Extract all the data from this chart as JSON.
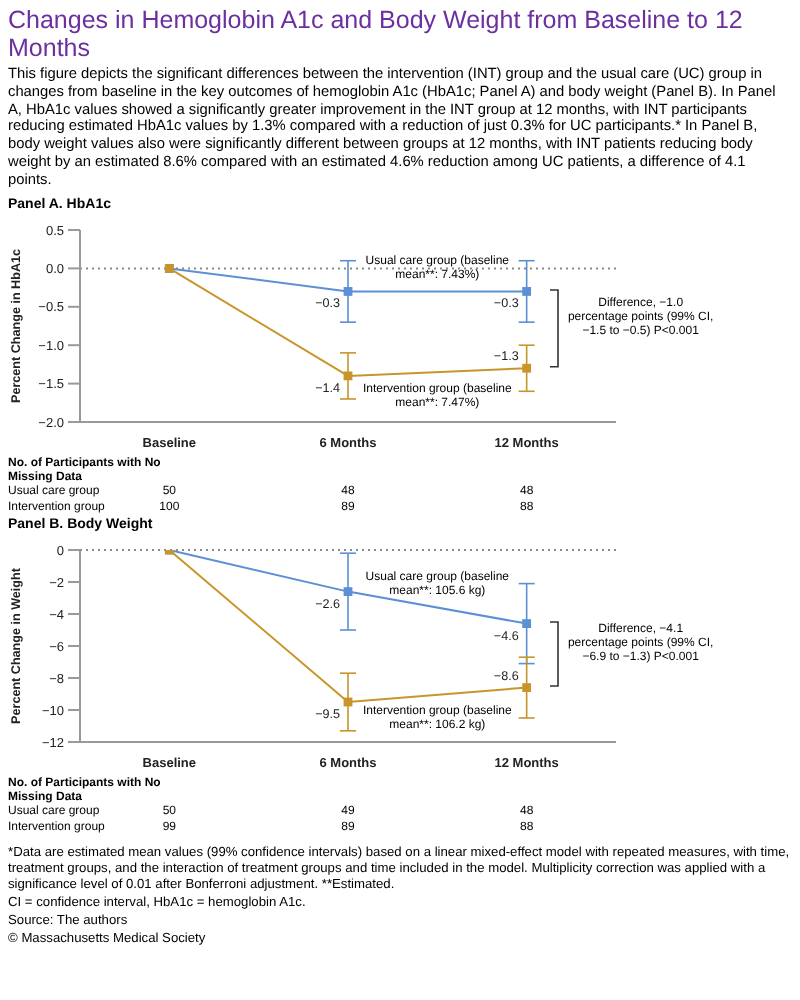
{
  "chart_data": [
    {
      "type": "line",
      "title": "Changes in Hemoglobin A1c and Body Weight from Baseline to 12 Months",
      "subtitle": "This figure depicts the significant differences between the intervention (INT) group and the usual care (UC) group in changes from baseline in the key outcomes of hemoglobin A1c (HbA1c; Panel A) and body weight (Panel B). In Panel A, HbA1c values showed a significantly greater improvement in the INT group at 12 months, with INT participants reducing estimated HbA1c values by 1.3% compared with a reduction of just 0.3% for UC participants.* In Panel B, body weight values also were significantly different between groups at 12 months, with INT patients reducing body weight by an estimated 8.6% compared with an estimated 4.6% reduction among UC patients, a difference of 4.1 points.",
      "ylabel": "Percent Change in HbA1c",
      "categories": [
        "Baseline",
        "6 Months",
        "12 Months"
      ],
      "series": [
        {
          "color": "#5b8fd6",
          "values": [
            0,
            -0.3,
            -0.3
          ],
          "errors": [
            null,
            [
              -0.7,
              0.1
            ],
            [
              -0.7,
              0.1
            ]
          ],
          "value_labels": [
            null,
            "−0.3",
            "−0.3"
          ]
        },
        {
          "color": "#c8952a",
          "values": [
            0,
            -1.4,
            -1.3
          ],
          "errors": [
            null,
            [
              -1.7,
              -1.1
            ],
            [
              -1.6,
              -1.0
            ]
          ],
          "value_labels": [
            null,
            "−1.4",
            "−1.3"
          ]
        }
      ],
      "ylim": [
        -2,
        0.5
      ],
      "yticks": [
        {
          "value": -2,
          "label": "−2.0"
        },
        {
          "value": -1.5,
          "label": "−1.5"
        },
        {
          "value": -1,
          "label": "−1.0"
        },
        {
          "value": -0.5,
          "label": "−0.5"
        },
        {
          "value": 0,
          "label": "0.0"
        },
        0.5
      ],
      "ref_lines": [
        {
          "axis": "y",
          "value": 0,
          "color": "#888888",
          "line_style": "dotted"
        }
      ],
      "marker": "square",
      "line_style": "solid",
      "annotations": [
        "Panel A. HbA1c",
        "Usual care group (baseline mean**: 7.43%)",
        "Intervention group (baseline mean**: 7.47%)",
        "Difference, −1.0 percentage points (99% CI, −1.5 to −0.5) P<0.001",
        "No. of Participants with No Missing Data",
        "Usual care group",
        "50",
        "48",
        "48",
        "Intervention group",
        "100",
        "89",
        "88"
      ]
    },
    {
      "type": "line",
      "ylabel": "Percent Change in Weight",
      "categories": [
        "Baseline",
        "6 Months",
        "12 Months"
      ],
      "series": [
        {
          "color": "#5b8fd6",
          "values": [
            0,
            -2.6,
            -4.6
          ],
          "errors": [
            null,
            [
              -5.0,
              -0.2
            ],
            [
              -7.1,
              -2.1
            ]
          ],
          "value_labels": [
            null,
            "−2.6",
            "−4.6"
          ]
        },
        {
          "color": "#c8952a",
          "values": [
            0,
            -9.5,
            -8.6
          ],
          "errors": [
            null,
            [
              -11.3,
              -7.7
            ],
            [
              -10.5,
              -6.7
            ]
          ],
          "value_labels": [
            null,
            "−9.5",
            "−8.6"
          ]
        }
      ],
      "ylim": [
        -12,
        0
      ],
      "yticks": [
        {
          "value": -12,
          "label": "−12"
        },
        {
          "value": -10,
          "label": "−10"
        },
        {
          "value": -8,
          "label": "−8"
        },
        {
          "value": -6,
          "label": "−6"
        },
        {
          "value": -4,
          "label": "−4"
        },
        {
          "value": -2,
          "label": "−2"
        },
        0
      ],
      "ref_lines": [
        {
          "axis": "y",
          "value": 0,
          "color": "#888888",
          "line_style": "dotted"
        }
      ],
      "marker": "square",
      "line_style": "solid",
      "annotations": [
        "Panel B. Body Weight",
        "Usual care group (baseline mean**: 105.6 kg)",
        "Intervention group (baseline mean**: 106.2 kg)",
        "Difference, −4.1 percentage points (99% CI, −6.9 to −1.3) P<0.001",
        "No. of Participants with No Missing Data",
        "Usual care group",
        "50",
        "49",
        "48",
        "Intervention group",
        "99",
        "89",
        "88",
        "*Data are estimated mean values (99% confidence intervals) based on a linear mixed-effect model with repeated measures, with time, treatment groups, and the interaction of treatment groups and time included in the model. Multiplicity correction was applied with a significance level of 0.01 after Bonferroni adjustment. **Estimated.",
        "CI = confidence interval, HbA1c = hemoglobin A1c.",
        "Source: The authors",
        "© Massachusetts Medical Society"
      ]
    }
  ]
}
